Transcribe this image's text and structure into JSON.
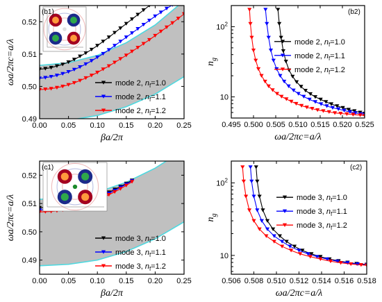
{
  "chart_data": [
    {
      "panel": "b1",
      "type": "line",
      "xlabel": "βa/2π",
      "ylabel": "ωa/2πc=a/λ",
      "xlim": [
        0.0,
        0.25
      ],
      "ylim": [
        0.49,
        0.525
      ],
      "xticks": [
        "0.00",
        "0.05",
        "0.10",
        "0.15",
        "0.20",
        "0.25"
      ],
      "yticks": [
        "0.49",
        "0.50",
        "0.51",
        "0.52"
      ],
      "legend_position": "bottom-right",
      "series": [
        {
          "name": "mode 2, nf=1.0",
          "color": "#000000",
          "marker": "triangle-down",
          "x": [
            0.0,
            0.01,
            0.02,
            0.03,
            0.04,
            0.05,
            0.06,
            0.07,
            0.08,
            0.09,
            0.1,
            0.11,
            0.12,
            0.13,
            0.14,
            0.15,
            0.16,
            0.17,
            0.18,
            0.19,
            0.2,
            0.21,
            0.22,
            0.225
          ],
          "y": [
            0.5053,
            0.5055,
            0.5058,
            0.5063,
            0.5068,
            0.5075,
            0.5083,
            0.5093,
            0.5103,
            0.5114,
            0.5126,
            0.5139,
            0.5152,
            0.5166,
            0.518,
            0.5194,
            0.5208,
            0.5222,
            0.5236,
            0.525,
            0.5264,
            0.5278,
            0.5292,
            0.53
          ]
        },
        {
          "name": "mode 2, nf=1.1",
          "color": "#0000ff",
          "marker": "triangle-down",
          "x": [
            0.0,
            0.01,
            0.02,
            0.03,
            0.04,
            0.05,
            0.06,
            0.07,
            0.08,
            0.09,
            0.1,
            0.11,
            0.12,
            0.13,
            0.14,
            0.15,
            0.16,
            0.17,
            0.18,
            0.19,
            0.2,
            0.21,
            0.22,
            0.23,
            0.24
          ],
          "y": [
            0.5025,
            0.5027,
            0.503,
            0.5034,
            0.5039,
            0.5045,
            0.5052,
            0.506,
            0.5069,
            0.5079,
            0.509,
            0.5101,
            0.5113,
            0.5126,
            0.5139,
            0.5152,
            0.5165,
            0.5178,
            0.5191,
            0.5204,
            0.5217,
            0.5229,
            0.5241,
            0.5252,
            0.5262
          ]
        },
        {
          "name": "mode 2, nf=1.2",
          "color": "#ff0000",
          "marker": "triangle-down",
          "x": [
            0.0,
            0.01,
            0.02,
            0.03,
            0.04,
            0.05,
            0.06,
            0.07,
            0.08,
            0.09,
            0.1,
            0.11,
            0.12,
            0.13,
            0.14,
            0.15,
            0.16,
            0.17,
            0.18,
            0.19,
            0.2,
            0.21,
            0.22,
            0.23,
            0.24,
            0.25
          ],
          "y": [
            0.499,
            0.4991,
            0.4993,
            0.4996,
            0.5,
            0.5005,
            0.5011,
            0.5018,
            0.5026,
            0.5034,
            0.5043,
            0.5053,
            0.5063,
            0.5074,
            0.5085,
            0.5096,
            0.5108,
            0.512,
            0.5132,
            0.5144,
            0.5157,
            0.517,
            0.5183,
            0.5196,
            0.521,
            0.5224
          ]
        }
      ],
      "shaded_region": {
        "color": "#c0c0c0",
        "edge_color": "#4dd9e0",
        "upper_x": [
          0.0,
          0.05,
          0.1,
          0.15,
          0.2,
          0.25
        ],
        "upper_y": [
          0.5065,
          0.5073,
          0.5096,
          0.5135,
          0.519,
          0.5265
        ],
        "lower_x": [
          0.0,
          0.05,
          0.1,
          0.15,
          0.2,
          0.25
        ],
        "lower_y": [
          0.489,
          0.4895,
          0.491,
          0.4937,
          0.4976,
          0.503
        ]
      },
      "panel_label": "(b1)"
    },
    {
      "panel": "b2",
      "type": "line",
      "xlabel": "ωa/2πc=a/λ",
      "ylabel": "ng",
      "xlim": [
        0.495,
        0.525
      ],
      "ylim": [
        5,
        200
      ],
      "yscale": "log",
      "xticks": [
        "0.495",
        "0.500",
        "0.505",
        "0.510",
        "0.515",
        "0.520",
        "0.525"
      ],
      "yticks": [
        "10",
        "10²"
      ],
      "legend_position": "center-right",
      "series": [
        {
          "name": "mode 2, nf=1.0",
          "color": "#000000",
          "marker": "triangle-down",
          "x": [
            0.5055,
            0.5058,
            0.5062,
            0.5067,
            0.5073,
            0.508,
            0.5088,
            0.5097,
            0.5107,
            0.5117,
            0.5128,
            0.5139,
            0.5151,
            0.5163,
            0.5175,
            0.5188,
            0.5201,
            0.5214,
            0.5227,
            0.524,
            0.525
          ],
          "y": [
            175,
            110,
            70,
            45,
            32,
            24,
            19.5,
            16.3,
            14,
            12.3,
            11.0,
            10.0,
            9.2,
            8.5,
            7.9,
            7.4,
            7.0,
            6.6,
            6.3,
            6.0,
            5.8
          ]
        },
        {
          "name": "mode 2, nf=1.1",
          "color": "#0000ff",
          "marker": "triangle-down",
          "x": [
            0.5027,
            0.503,
            0.5034,
            0.5039,
            0.5045,
            0.5052,
            0.506,
            0.5069,
            0.5079,
            0.509,
            0.5101,
            0.5113,
            0.5126,
            0.5139,
            0.5152,
            0.5165,
            0.5178,
            0.5191,
            0.5204,
            0.5217,
            0.5229,
            0.5241,
            0.525
          ],
          "y": [
            175,
            110,
            70,
            46,
            33,
            25,
            20,
            16.6,
            14.2,
            12.4,
            11.1,
            10.1,
            9.2,
            8.5,
            7.9,
            7.4,
            7.0,
            6.7,
            6.4,
            6.1,
            5.9,
            5.7,
            5.6
          ]
        },
        {
          "name": "mode 2, nf=1.2",
          "color": "#ff0000",
          "marker": "triangle-down",
          "x": [
            0.4991,
            0.4993,
            0.4996,
            0.5,
            0.5005,
            0.5011,
            0.5018,
            0.5026,
            0.5034,
            0.5043,
            0.5053,
            0.5063,
            0.5074,
            0.5085,
            0.5096,
            0.5108,
            0.512,
            0.5132,
            0.5144,
            0.5157,
            0.517,
            0.5183,
            0.5196,
            0.521,
            0.5224,
            0.524,
            0.525
          ],
          "y": [
            175,
            110,
            70,
            46,
            33,
            25,
            20,
            16.6,
            14.2,
            12.5,
            11.1,
            10.1,
            9.3,
            8.6,
            8.0,
            7.5,
            7.1,
            6.8,
            6.5,
            6.3,
            6.1,
            5.9,
            5.8,
            5.7,
            5.6,
            5.5,
            5.4
          ]
        }
      ],
      "panel_label": "(b2)"
    },
    {
      "panel": "c1",
      "type": "line",
      "xlabel": "βa/2π",
      "ylabel": "ωa/2πc=a/λ",
      "xlim": [
        0.0,
        0.25
      ],
      "ylim": [
        0.485,
        0.525
      ],
      "xticks": [
        "0.00",
        "0.05",
        "0.10",
        "0.15",
        "0.20",
        "0.25"
      ],
      "yticks": [
        "0.49",
        "0.50",
        "0.51",
        "0.52"
      ],
      "legend_position": "bottom-right",
      "series": [
        {
          "name": "mode 3, nf=1.0",
          "color": "#000000",
          "marker": "triangle-down",
          "x": [
            0.0,
            0.01,
            0.02,
            0.03,
            0.04,
            0.05,
            0.06,
            0.07,
            0.08,
            0.09,
            0.1,
            0.11,
            0.12,
            0.13,
            0.14,
            0.15,
            0.16
          ],
          "y": [
            0.5085,
            0.5086,
            0.5087,
            0.5089,
            0.5091,
            0.5094,
            0.5098,
            0.5103,
            0.5109,
            0.5116,
            0.5123,
            0.5131,
            0.514,
            0.515,
            0.516,
            0.5171,
            0.5182
          ]
        },
        {
          "name": "mode 3, nf=1.1",
          "color": "#0000ff",
          "marker": "triangle-down",
          "x": [
            0.0,
            0.01,
            0.02,
            0.03,
            0.04,
            0.05,
            0.06,
            0.07,
            0.08,
            0.09,
            0.1,
            0.11,
            0.12,
            0.13,
            0.14,
            0.15,
            0.16
          ],
          "y": [
            0.5077,
            0.5078,
            0.5079,
            0.5081,
            0.5084,
            0.5088,
            0.5092,
            0.5097,
            0.5103,
            0.511,
            0.5118,
            0.5127,
            0.5136,
            0.5146,
            0.5157,
            0.5168,
            0.518
          ]
        },
        {
          "name": "mode 3, nf=1.2",
          "color": "#ff0000",
          "marker": "triangle-down",
          "x": [
            0.0,
            0.01,
            0.02,
            0.03,
            0.04,
            0.05,
            0.06,
            0.07,
            0.08,
            0.09,
            0.1,
            0.11,
            0.12,
            0.13,
            0.14,
            0.15,
            0.16
          ],
          "y": [
            0.507,
            0.5071,
            0.5072,
            0.5074,
            0.5077,
            0.5081,
            0.5086,
            0.5091,
            0.5097,
            0.5104,
            0.5112,
            0.5121,
            0.5131,
            0.5141,
            0.5152,
            0.5164,
            0.5177
          ]
        }
      ],
      "shaded_region": {
        "color": "#c0c0c0",
        "edge_color": "#4dd9e0",
        "upper_x": [
          0.0,
          0.05,
          0.1,
          0.15,
          0.2,
          0.25
        ],
        "upper_y": [
          0.5115,
          0.512,
          0.514,
          0.5175,
          0.5225,
          0.529
        ],
        "lower_x": [
          0.0,
          0.05,
          0.1,
          0.15,
          0.2,
          0.25
        ],
        "lower_y": [
          0.488,
          0.4885,
          0.49,
          0.493,
          0.4975,
          0.5035
        ]
      },
      "panel_label": "(c1)"
    },
    {
      "panel": "c2",
      "type": "line",
      "xlabel": "ωa/2πc=a/λ",
      "ylabel": "ng",
      "xlim": [
        0.506,
        0.518
      ],
      "ylim": [
        5.5,
        200
      ],
      "yscale": "log",
      "xticks": [
        "0.506",
        "0.508",
        "0.510",
        "0.512",
        "0.514",
        "0.516",
        "0.518"
      ],
      "yticks": [
        "10",
        "10²"
      ],
      "legend_position": "center-right",
      "series": [
        {
          "name": "mode 3, nf=1.0",
          "color": "#000000",
          "marker": "triangle-down",
          "x": [
            0.5082,
            0.5083,
            0.5085,
            0.5088,
            0.5092,
            0.5097,
            0.5103,
            0.5109,
            0.5116,
            0.5123,
            0.5131,
            0.5139,
            0.5147,
            0.5155,
            0.5163,
            0.5171,
            0.518
          ],
          "y": [
            165,
            105,
            65,
            42,
            30,
            23,
            18.5,
            15.5,
            13.3,
            11.7,
            10.5,
            9.6,
            8.9,
            8.4,
            8.0,
            7.7,
            7.5
          ]
        },
        {
          "name": "mode 3, nf=1.1",
          "color": "#0000ff",
          "marker": "triangle-down",
          "x": [
            0.5077,
            0.5078,
            0.508,
            0.5083,
            0.5087,
            0.5092,
            0.5098,
            0.5105,
            0.5112,
            0.512,
            0.5128,
            0.5136,
            0.5145,
            0.5154,
            0.5163,
            0.5172,
            0.518
          ],
          "y": [
            165,
            105,
            65,
            42,
            30,
            23,
            18.5,
            15.5,
            13.3,
            11.7,
            10.5,
            9.6,
            8.9,
            8.3,
            7.9,
            7.6,
            7.4
          ]
        },
        {
          "name": "mode 3, nf=1.2",
          "color": "#ff0000",
          "marker": "triangle-down",
          "x": [
            0.507,
            0.5071,
            0.5073,
            0.5076,
            0.508,
            0.5085,
            0.5091,
            0.5098,
            0.5105,
            0.5113,
            0.5121,
            0.513,
            0.5139,
            0.5148,
            0.5157,
            0.5166,
            0.5175,
            0.518
          ],
          "y": [
            165,
            105,
            65,
            42,
            30,
            23,
            18.5,
            15.5,
            13.3,
            11.7,
            10.5,
            9.6,
            8.9,
            8.3,
            7.9,
            7.6,
            7.4,
            7.3
          ]
        }
      ],
      "panel_label": "(c2)"
    }
  ],
  "colors": {
    "black": "#000000",
    "blue": "#0000ff",
    "red": "#ff0000",
    "gap": "#c0c0c0",
    "edge": "#4dd9e0"
  }
}
